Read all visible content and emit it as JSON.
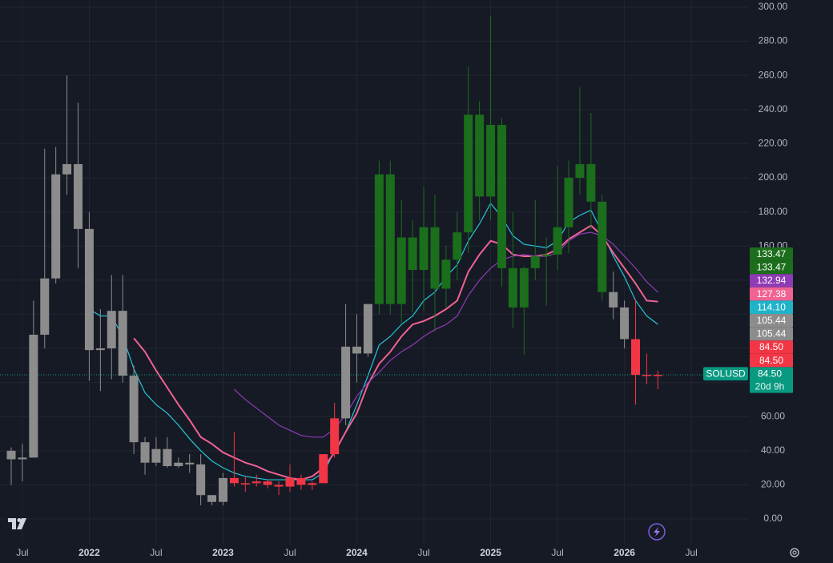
{
  "chart_data": {
    "type": "candlestick",
    "categories": [
      null,
      "Jul",
      null,
      null,
      null,
      null,
      null,
      "2022",
      null,
      null,
      null,
      null,
      null,
      "Jul",
      null,
      null,
      null,
      null,
      null,
      "2023",
      null,
      null,
      null,
      null,
      null,
      "Jul",
      null,
      null,
      null,
      null,
      null,
      "2024",
      null,
      null,
      null,
      null,
      null,
      "Jul",
      null,
      null,
      null,
      null,
      null,
      "2025",
      null,
      null,
      null,
      null,
      null,
      "Jul",
      null,
      null,
      null,
      null,
      null,
      "2026",
      null,
      null,
      null,
      null,
      null,
      "Jul"
    ],
    "open": [
      40,
      35,
      36,
      108,
      141,
      202,
      208,
      170,
      99,
      100,
      122,
      84,
      45,
      33,
      41,
      31,
      33,
      32,
      14,
      10,
      24,
      21,
      21,
      22,
      20,
      19,
      24,
      20,
      21,
      38,
      59,
      101,
      97,
      126,
      202,
      126,
      165,
      146,
      171,
      135,
      152,
      168,
      237,
      189,
      231,
      147,
      124,
      147,
      154,
      155,
      171,
      200,
      208,
      186,
      133,
      124,
      105.44,
      84.5,
      84.5,
      null,
      null,
      null
    ],
    "high": [
      42,
      44,
      128,
      217,
      218,
      260,
      244,
      180,
      123,
      143,
      143,
      90,
      48,
      48,
      48,
      36,
      38,
      38,
      14,
      27,
      51,
      25,
      26,
      23,
      22,
      32,
      26,
      22,
      38,
      68,
      126,
      120,
      126,
      210,
      210,
      187,
      175,
      195,
      190,
      160,
      180,
      265,
      245,
      295,
      235,
      180,
      148,
      187,
      165,
      207,
      210,
      253,
      238,
      190,
      145,
      128,
      129,
      97,
      87,
      null,
      null,
      null
    ],
    "low": [
      20,
      22,
      36,
      100,
      138,
      190,
      147,
      81,
      75,
      82,
      80,
      38,
      26,
      31,
      30,
      30,
      27,
      8,
      8,
      8,
      19,
      16,
      19,
      18,
      14,
      16,
      17,
      17,
      21,
      36,
      55,
      80,
      95,
      120,
      120,
      115,
      121,
      122,
      110,
      124,
      140,
      156,
      175,
      175,
      136,
      112,
      96,
      140,
      125,
      146,
      156,
      190,
      170,
      128,
      117,
      100,
      67,
      79,
      76,
      null,
      null,
      null
    ],
    "close": [
      35,
      36,
      108,
      141,
      202,
      208,
      170,
      99,
      100,
      122,
      84,
      45,
      33,
      41,
      31,
      33,
      32,
      14,
      10,
      24,
      21,
      21,
      22,
      20,
      19,
      24,
      20,
      21,
      38,
      59,
      101,
      97,
      126,
      202,
      126,
      165,
      146,
      171,
      135,
      152,
      168,
      237,
      189,
      231,
      147,
      124,
      147,
      154,
      155,
      171,
      200,
      208,
      186,
      133,
      124,
      105.44,
      84.5,
      84.5,
      84.5,
      null,
      null,
      null
    ],
    "colors": [
      "#8c8c8c",
      "#8c8c8c",
      "#8c8c8c",
      "#8c8c8c",
      "#8c8c8c",
      "#8c8c8c",
      "#8c8c8c",
      "#8c8c8c",
      "#8c8c8c",
      "#8c8c8c",
      "#8c8c8c",
      "#8c8c8c",
      "#8c8c8c",
      "#8c8c8c",
      "#8c8c8c",
      "#8c8c8c",
      "#8c8c8c",
      "#8c8c8c",
      "#8c8c8c",
      "#8c8c8c",
      "#f23645",
      "#f23645",
      "#f23645",
      "#f23645",
      "#f23645",
      "#f23645",
      "#f23645",
      "#f23645",
      "#f23645",
      "#f23645",
      "#8c8c8c",
      "#8c8c8c",
      "#8c8c8c",
      "#1b6e1b",
      "#1b6e1b",
      "#1b6e1b",
      "#1b6e1b",
      "#1b6e1b",
      "#1b6e1b",
      "#1b6e1b",
      "#1b6e1b",
      "#1b6e1b",
      "#1b6e1b",
      "#1b6e1b",
      "#1b6e1b",
      "#1b6e1b",
      "#1b6e1b",
      "#1b6e1b",
      "#1b6e1b",
      "#1b6e1b",
      "#1b6e1b",
      "#1b6e1b",
      "#1b6e1b",
      "#1b6e1b",
      "#8c8c8c",
      "#8c8c8c",
      "#f23645",
      "#f23645",
      "#f23645",
      null,
      null,
      null
    ],
    "lines": [
      {
        "color": "#26c6da",
        "values": [
          null,
          null,
          null,
          null,
          null,
          null,
          null,
          123,
          119,
          119,
          107,
          88,
          74,
          67,
          62,
          55,
          47,
          40,
          34,
          30,
          27,
          25,
          24,
          23,
          23,
          23,
          23,
          23,
          27,
          40,
          51,
          67,
          84,
          102,
          107,
          114,
          119,
          128,
          133,
          142,
          149,
          163,
          173,
          185,
          177,
          166,
          161,
          160,
          159,
          163,
          174,
          178,
          181,
          168,
          154,
          142,
          128,
          119,
          114.1,
          null,
          null,
          null
        ]
      },
      {
        "color": "#f06292",
        "values": [
          null,
          null,
          null,
          null,
          null,
          null,
          null,
          null,
          null,
          null,
          null,
          106,
          98,
          87,
          77,
          67,
          58,
          48,
          44,
          39,
          36,
          33,
          31,
          28,
          26,
          24,
          23,
          25,
          30,
          39,
          51,
          62,
          79,
          91,
          98,
          107,
          114,
          116,
          119,
          123,
          128,
          145,
          155,
          163,
          161,
          155,
          154,
          154,
          155,
          158,
          164,
          168,
          172,
          166,
          156,
          147,
          138,
          128,
          127.38,
          null,
          null,
          null
        ]
      },
      {
        "color": "#8e3bb5",
        "values": [
          null,
          null,
          null,
          null,
          null,
          null,
          null,
          null,
          null,
          null,
          null,
          null,
          null,
          null,
          null,
          null,
          null,
          null,
          null,
          null,
          76,
          70,
          65,
          60,
          55,
          52,
          49,
          48,
          48,
          53,
          61,
          72,
          80,
          86,
          93,
          98,
          102,
          107,
          111,
          114,
          119,
          131,
          140,
          147,
          152,
          154,
          155,
          154,
          154,
          156,
          163,
          167,
          168,
          166,
          161,
          154,
          147,
          139,
          132.94,
          null,
          null,
          null
        ]
      }
    ],
    "ylim": [
      -15,
      304.2
    ],
    "yticks": [
      {
        "value": 0,
        "label": "0.00"
      },
      {
        "value": 20,
        "label": "20.00"
      },
      {
        "value": 40,
        "label": "40.00"
      },
      {
        "value": 60,
        "label": "60.00"
      },
      {
        "value": 80,
        "label": "80.00"
      },
      {
        "value": 100,
        "label": "100.00"
      },
      {
        "value": 120,
        "label": "120.00"
      },
      {
        "value": 140,
        "label": "140.00"
      },
      {
        "value": 160,
        "label": "160.00"
      },
      {
        "value": 180,
        "label": "180.00"
      },
      {
        "value": 200,
        "label": "200.00"
      },
      {
        "value": 220,
        "label": "220.00"
      },
      {
        "value": 240,
        "label": "240.00"
      },
      {
        "value": 260,
        "label": "260.00"
      },
      {
        "value": 280,
        "label": "280.00"
      },
      {
        "value": 300,
        "label": "300.00"
      }
    ],
    "grid": true,
    "price_labels": [
      {
        "value": 133.47,
        "color": "#1b6e1b"
      },
      {
        "value": 133.47,
        "color": "#1b6e1b"
      },
      {
        "value": 132.94,
        "color": "#8e3bb5"
      },
      {
        "value": 127.38,
        "color": "#f06292"
      },
      {
        "value": 114.1,
        "label": "114.10",
        "color": "#1fb3c9"
      },
      {
        "value": 105.44,
        "color": "#8c8c8c"
      },
      {
        "value": 105.44,
        "color": "#8c8c8c"
      },
      {
        "value": 84.5,
        "label": "84.50",
        "color": "#f23645"
      },
      {
        "value": 84.5,
        "label": "84.50",
        "color": "#f23645"
      }
    ],
    "last_price": {
      "symbol": "SOLUSD",
      "value": 84.5,
      "label": "84.50",
      "countdown": "20d 9h",
      "color": "#089981"
    }
  }
}
